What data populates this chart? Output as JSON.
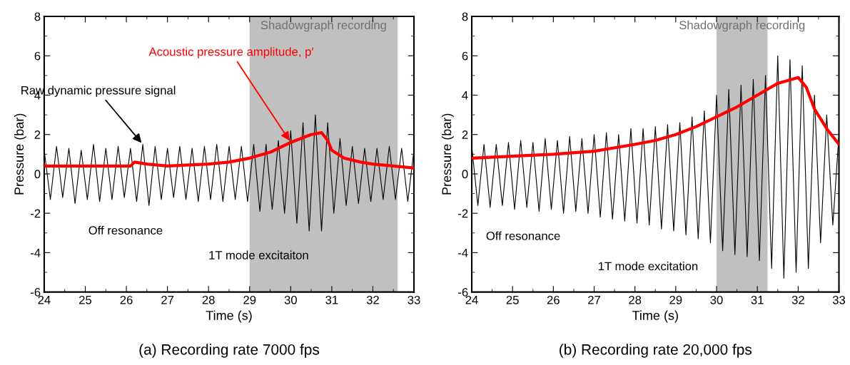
{
  "chart_data": [
    {
      "type": "line",
      "title": "(a) Recording rate 7000 fps",
      "xlabel": "Time (s)",
      "ylabel": "Pressure (bar)",
      "xlim": [
        24,
        33
      ],
      "xticks": [
        24,
        25,
        26,
        27,
        28,
        29,
        30,
        31,
        32,
        33
      ],
      "ylim": [
        -6,
        8
      ],
      "yticks": [
        -6,
        -4,
        -2,
        0,
        2,
        4,
        6,
        8
      ],
      "series": [
        {
          "name": "Raw dynamic pressure signal",
          "color": "#000000",
          "x": [
            24,
            24.15,
            24.3,
            24.45,
            24.6,
            24.75,
            24.9,
            25.05,
            25.2,
            25.35,
            25.5,
            25.65,
            25.8,
            25.95,
            26.1,
            26.25,
            26.4,
            26.55,
            26.7,
            26.85,
            27,
            27.15,
            27.3,
            27.45,
            27.6,
            27.75,
            27.9,
            28.05,
            28.2,
            28.35,
            28.5,
            28.65,
            28.8,
            28.95,
            29.1,
            29.25,
            29.4,
            29.55,
            29.7,
            29.85,
            30,
            30.15,
            30.3,
            30.45,
            30.6,
            30.75,
            30.9,
            31.05,
            31.2,
            31.35,
            31.5,
            31.65,
            31.8,
            31.95,
            32.1,
            32.25,
            32.4,
            32.55,
            32.7,
            32.85,
            33
          ],
          "values": [
            1.2,
            -1.3,
            1.4,
            -1.2,
            1.3,
            -1.5,
            1.2,
            -1.3,
            1.5,
            -1.4,
            1.3,
            -1.3,
            1.4,
            -1.2,
            1.3,
            -1.4,
            1.5,
            -1.6,
            1.4,
            -1.3,
            1.3,
            -1.2,
            1.4,
            -1.3,
            1.3,
            -1.4,
            1.4,
            -1.3,
            1.5,
            -1.4,
            1.4,
            -1.3,
            1.4,
            -1.4,
            1.5,
            -1.9,
            1.5,
            -1.8,
            1.7,
            -2.0,
            2.2,
            -2.5,
            2.6,
            -2.9,
            3.0,
            -2.9,
            2.6,
            -2.0,
            1.8,
            -1.6,
            1.4,
            -1.5,
            1.3,
            -1.4,
            1.3,
            -1.3,
            1.4,
            -1.3,
            1.3,
            -1.4,
            1.2
          ]
        },
        {
          "name": "Acoustic pressure amplitude, p′",
          "color": "#ff0000",
          "x": [
            24,
            26.1,
            26.2,
            26.5,
            27,
            28,
            28.5,
            29,
            29.5,
            30,
            30.5,
            30.75,
            30.9,
            31,
            31.3,
            31.7,
            32,
            32.5,
            33
          ],
          "values": [
            0.4,
            0.4,
            0.6,
            0.5,
            0.4,
            0.5,
            0.6,
            0.8,
            1.1,
            1.6,
            2.0,
            2.1,
            1.7,
            1.2,
            0.8,
            0.6,
            0.5,
            0.4,
            0.3
          ]
        }
      ],
      "bands": [
        {
          "axis": "x",
          "from": 29,
          "to": 32.6,
          "label": "Shadowgraph recording",
          "color": "#c0c0c0"
        }
      ],
      "annotations": [
        "Off resonance",
        "1T mode excitaiton"
      ]
    },
    {
      "type": "line",
      "title": "(b) Recording rate 20,000 fps",
      "xlabel": "Time (s)",
      "ylabel": "Pressure (bar)",
      "xlim": [
        24,
        33
      ],
      "xticks": [
        24,
        25,
        26,
        27,
        28,
        29,
        30,
        31,
        32,
        33
      ],
      "ylim": [
        -6,
        8
      ],
      "yticks": [
        -6,
        -4,
        -2,
        0,
        2,
        4,
        6,
        8
      ],
      "series": [
        {
          "color": "#000000",
          "x": [
            24,
            24.15,
            24.3,
            24.45,
            24.6,
            24.75,
            24.9,
            25.05,
            25.2,
            25.35,
            25.5,
            25.65,
            25.8,
            25.95,
            26.1,
            26.25,
            26.4,
            26.55,
            26.7,
            26.85,
            27,
            27.15,
            27.3,
            27.45,
            27.6,
            27.75,
            27.9,
            28.05,
            28.2,
            28.35,
            28.5,
            28.65,
            28.8,
            28.95,
            29.1,
            29.25,
            29.4,
            29.55,
            29.7,
            29.85,
            30,
            30.15,
            30.3,
            30.45,
            30.6,
            30.75,
            30.9,
            31.05,
            31.2,
            31.35,
            31.5,
            31.65,
            31.8,
            31.95,
            32.1,
            32.25,
            32.4,
            32.55,
            32.7,
            32.85,
            33
          ],
          "values": [
            1.4,
            -1.6,
            1.5,
            -1.7,
            1.5,
            -1.6,
            1.6,
            -1.8,
            1.7,
            -1.7,
            1.6,
            -1.9,
            1.8,
            -1.8,
            1.7,
            -2.0,
            1.9,
            -1.9,
            1.8,
            -2.0,
            2.0,
            -2.2,
            2.1,
            -2.3,
            2.0,
            -2.4,
            2.3,
            -2.5,
            2.3,
            -2.6,
            2.4,
            -2.8,
            2.5,
            -2.9,
            2.6,
            -3.1,
            2.9,
            -3.3,
            3.2,
            -3.5,
            4.0,
            -3.9,
            4.3,
            -4.1,
            4.5,
            -4.2,
            4.8,
            -4.4,
            5.0,
            -4.8,
            6.0,
            -5.3,
            5.8,
            -5.0,
            5.5,
            -4.8,
            4.0,
            -3.5,
            3.0,
            -2.6,
            2.0
          ]
        },
        {
          "color": "#ff0000",
          "x": [
            24,
            25,
            26,
            27,
            28,
            28.5,
            29,
            29.5,
            30,
            30.5,
            31,
            31.5,
            32,
            32.2,
            32.4,
            32.7,
            33
          ],
          "values": [
            0.8,
            0.9,
            1.0,
            1.15,
            1.5,
            1.7,
            2.0,
            2.4,
            2.9,
            3.4,
            4.0,
            4.6,
            4.9,
            4.4,
            3.3,
            2.3,
            1.5
          ]
        }
      ],
      "bands": [
        {
          "axis": "x",
          "from": 30,
          "to": 31.25,
          "label": "Shadowgraph recording",
          "color": "#c0c0c0"
        }
      ],
      "annotations": [
        "Off resonance",
        "1T mode excitation"
      ]
    }
  ]
}
